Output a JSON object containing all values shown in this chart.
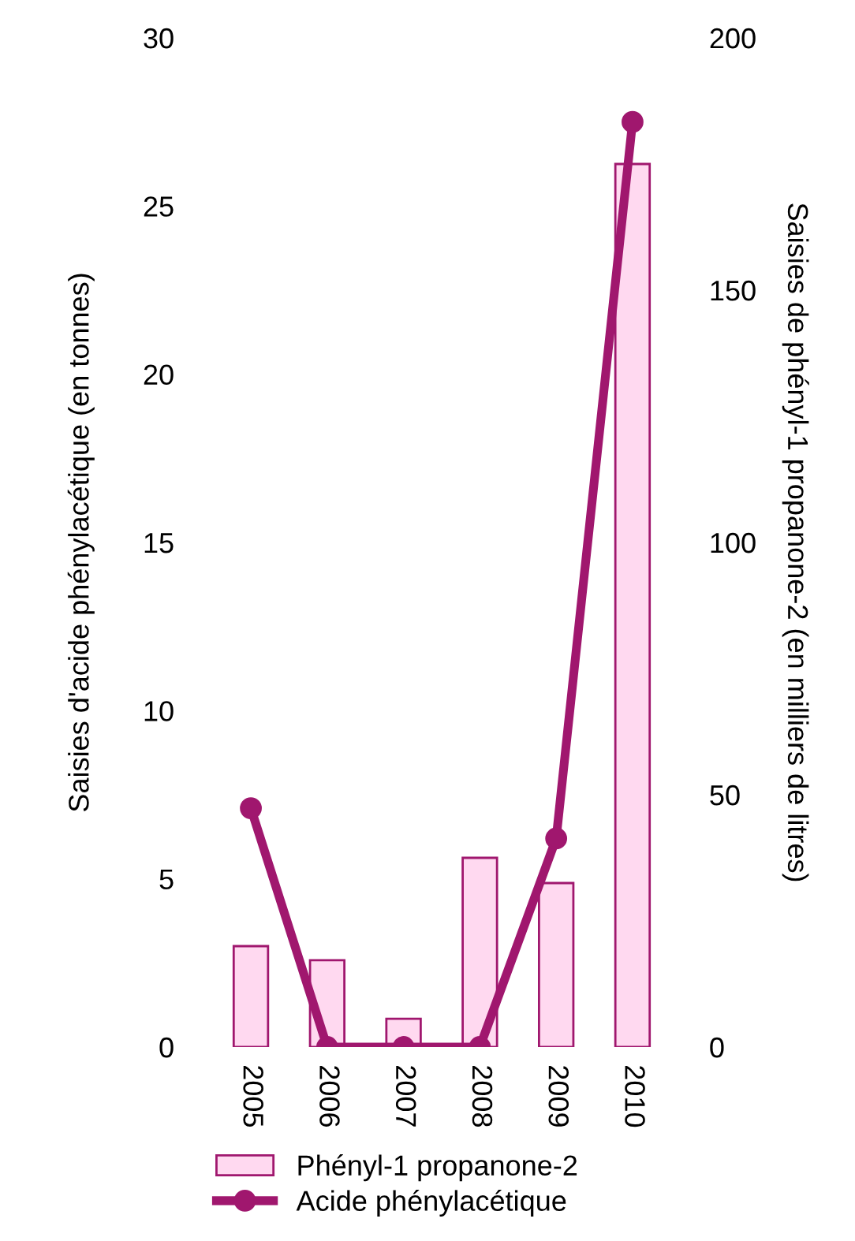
{
  "chart_data": {
    "type": "bar",
    "categories": [
      "2005",
      "2006",
      "2007",
      "2008",
      "2009",
      "2010"
    ],
    "ylabel": "Saisies d'acide phénylacétique (en tonnes)",
    "y2label": "Saisies de phényl-1 propanone-2 (en milliers de litres)",
    "ylim": [
      0,
      30
    ],
    "yticks": [
      0,
      5,
      10,
      15,
      20,
      25,
      30
    ],
    "y2lim": [
      0,
      200
    ],
    "y2ticks": [
      0,
      50,
      100,
      150,
      200
    ],
    "series": [
      {
        "name": "Phényl-1 propanone-2",
        "axis": "y2",
        "color": "#ffd9f0",
        "values": [
          20,
          17.2,
          5.6,
          37.5,
          32.5,
          175
        ]
      },
      {
        "name": "Acide phénylacétique",
        "type": "line",
        "axis": "y",
        "color": "#a0176e",
        "marker": "circle",
        "values": [
          7.1,
          0,
          0,
          0,
          6.2,
          27.5
        ]
      }
    ],
    "legend": "bottom",
    "grid": false
  }
}
